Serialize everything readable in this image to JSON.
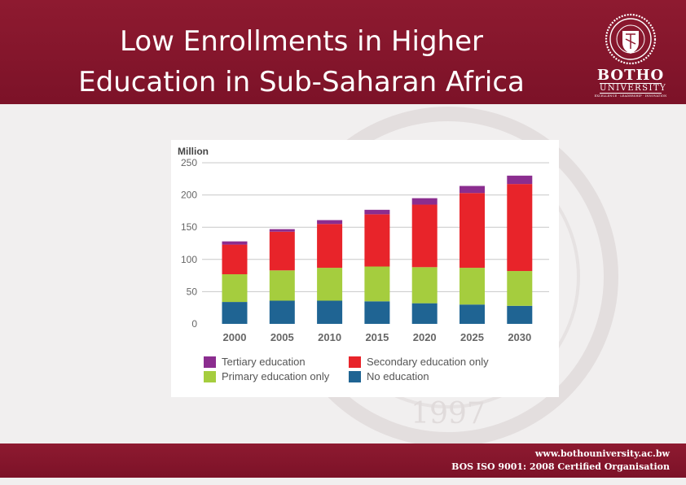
{
  "slide": {
    "title_line1": "Low Enrollments in Higher",
    "title_line2": "Education in Sub-Saharan Africa"
  },
  "logo": {
    "name_line1": "BOTHO",
    "name_line2": "UNIVERSITY",
    "tagline": "EXCELLENCE · LEADERSHIP · INNOVATION",
    "seal_text": "BOTHO UNIVERSITY"
  },
  "footer": {
    "url": "www.bothouniversity.ac.bw",
    "certification": "BOS ISO 9001: 2008 Certified Organisation"
  },
  "colors": {
    "tertiary": "#8b2d8f",
    "secondary": "#e8242a",
    "primary": "#a5cd3e",
    "none": "#1f6493"
  },
  "chart_data": {
    "type": "bar",
    "stacked": true,
    "ylabel": "Million",
    "ylim": [
      0,
      250
    ],
    "yticks": [
      0,
      50,
      100,
      150,
      200,
      250
    ],
    "grid": true,
    "legend_position": "bottom",
    "categories": [
      "2000",
      "2005",
      "2010",
      "2015",
      "2020",
      "2025",
      "2030"
    ],
    "series": [
      {
        "name": "No education",
        "color": "#1f6493",
        "values": [
          34,
          36,
          36,
          35,
          32,
          30,
          28
        ]
      },
      {
        "name": "Primary education only",
        "color": "#a5cd3e",
        "values": [
          43,
          47,
          51,
          54,
          56,
          57,
          54
        ]
      },
      {
        "name": "Secondary education only",
        "color": "#e8242a",
        "values": [
          46,
          60,
          68,
          81,
          97,
          116,
          135
        ]
      },
      {
        "name": "Tertiary education",
        "color": "#8b2d8f",
        "values": [
          5,
          4,
          6,
          7,
          10,
          11,
          13
        ]
      }
    ],
    "legend_order": [
      "Tertiary education",
      "Secondary education only",
      "Primary education only",
      "No education"
    ]
  }
}
